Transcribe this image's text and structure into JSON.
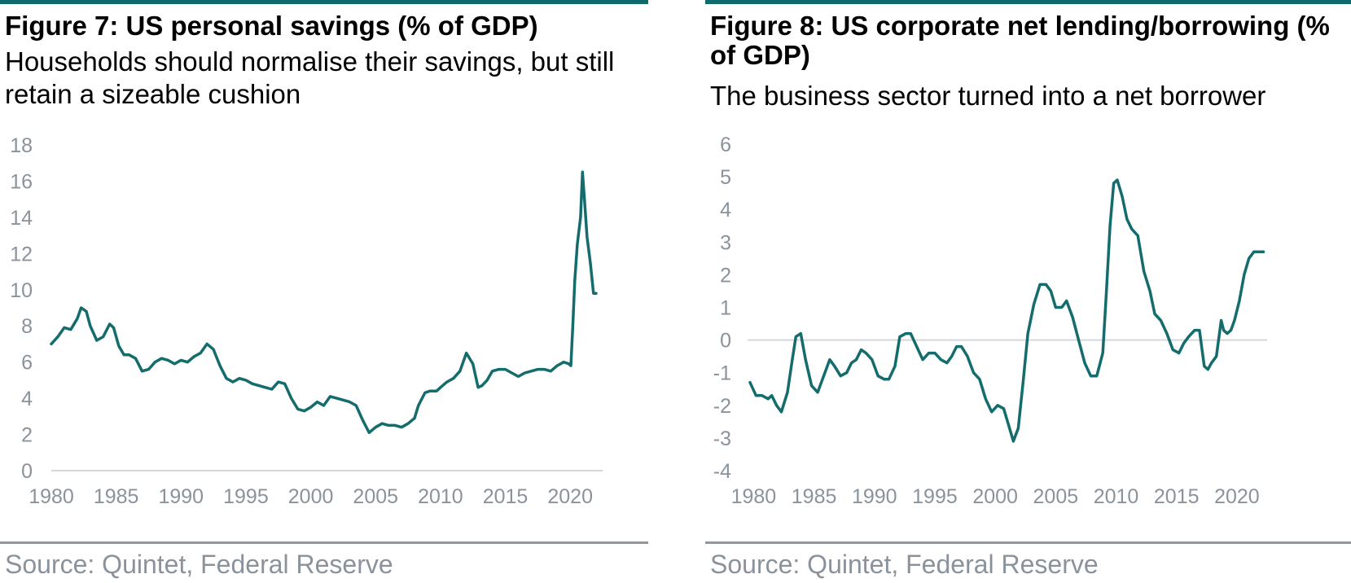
{
  "figures": [
    {
      "title": "Figure 7: US personal savings (% of GDP)",
      "subtitle": "Households should normalise their savings, but still retain a sizeable cushion",
      "source": "Source: Quintet, Federal Reserve"
    },
    {
      "title": "Figure 8: US corporate net lending/borrowing (% of GDP)",
      "subtitle": "The business sector turned into a net borrower",
      "source": "Source: Quintet, Federal Reserve"
    }
  ],
  "colors": {
    "accent": "#0f6b6b",
    "line": "#156c6c",
    "axis": "#d4d7da",
    "tick_text": "#8a939b"
  },
  "chart_data": [
    {
      "type": "line",
      "title": "Figure 7: US personal savings (% of GDP)",
      "xlabel": "",
      "ylabel": "",
      "xlim": [
        1980,
        2022.5
      ],
      "ylim": [
        0,
        18
      ],
      "xticks": [
        "1980",
        "1985",
        "1990",
        "1995",
        "2000",
        "2005",
        "2010",
        "2015",
        "2020"
      ],
      "yticks": [
        "0",
        "2",
        "4",
        "6",
        "8",
        "10",
        "12",
        "14",
        "16",
        "18"
      ],
      "grid": false,
      "series": [
        {
          "x": [
            1980,
            1980.5,
            1981,
            1981.5,
            1982,
            1982.3,
            1982.7,
            1983,
            1983.5,
            1984,
            1984.5,
            1984.8,
            1985.2,
            1985.6,
            1986,
            1986.5,
            1987,
            1987.5,
            1988,
            1988.5,
            1989,
            1989.5,
            1990,
            1990.5,
            1991,
            1991.5,
            1992,
            1992.5,
            1993,
            1993.5,
            1994,
            1994.5,
            1995,
            1995.5,
            1996,
            1996.5,
            1997,
            1997.5,
            1998,
            1998.5,
            1999,
            1999.5,
            2000,
            2000.5,
            2001,
            2001.5,
            2002,
            2002.5,
            2003,
            2003.5,
            2004,
            2004.5,
            2005,
            2005.5,
            2006,
            2006.5,
            2007,
            2007.5,
            2008,
            2008.3,
            2008.8,
            2009.2,
            2009.7,
            2010,
            2010.5,
            2011,
            2011.5,
            2012,
            2012.5,
            2012.9,
            2013.2,
            2013.6,
            2014,
            2014.5,
            2015,
            2015.5,
            2016,
            2016.5,
            2017,
            2017.5,
            2018,
            2018.5,
            2019,
            2019.5,
            2019.9,
            2020.05,
            2020.2,
            2020.35,
            2020.55,
            2020.8,
            2020.95,
            2021.1,
            2021.3,
            2021.55,
            2021.8,
            2022
          ],
          "values": [
            7.0,
            7.4,
            7.9,
            7.8,
            8.4,
            9.0,
            8.8,
            8.0,
            7.2,
            7.4,
            8.1,
            7.9,
            6.9,
            6.4,
            6.4,
            6.2,
            5.5,
            5.6,
            6.0,
            6.2,
            6.1,
            5.9,
            6.1,
            6.0,
            6.3,
            6.5,
            7.0,
            6.7,
            5.8,
            5.1,
            4.9,
            5.1,
            5.0,
            4.8,
            4.7,
            4.6,
            4.5,
            4.9,
            4.8,
            4.0,
            3.4,
            3.3,
            3.5,
            3.8,
            3.6,
            4.1,
            4.0,
            3.9,
            3.8,
            3.6,
            2.8,
            2.1,
            2.4,
            2.6,
            2.5,
            2.5,
            2.4,
            2.6,
            2.9,
            3.6,
            4.3,
            4.4,
            4.4,
            4.6,
            4.9,
            5.1,
            5.5,
            6.5,
            5.9,
            4.6,
            4.7,
            5.0,
            5.5,
            5.6,
            5.6,
            5.4,
            5.2,
            5.4,
            5.5,
            5.6,
            5.6,
            5.5,
            5.8,
            6.0,
            5.9,
            5.8,
            8.0,
            10.5,
            12.5,
            14.0,
            16.5,
            15.0,
            12.9,
            11.5,
            9.8,
            9.8
          ]
        }
      ]
    },
    {
      "type": "line",
      "title": "Figure 8: US corporate net lending/borrowing (% of GDP)",
      "xlabel": "",
      "ylabel": "",
      "xlim": [
        1979.5,
        2022.5
      ],
      "ylim": [
        -4,
        6
      ],
      "xticks": [
        "1980",
        "1985",
        "1990",
        "1995",
        "2000",
        "2005",
        "2010",
        "2015",
        "2020"
      ],
      "yticks": [
        "-4",
        "-3",
        "-2",
        "-1",
        "0",
        "1",
        "2",
        "3",
        "4",
        "5",
        "6"
      ],
      "grid": false,
      "series": [
        {
          "x": [
            1979.7,
            1980.2,
            1980.7,
            1981.2,
            1981.5,
            1981.9,
            1982.3,
            1982.8,
            1983.2,
            1983.5,
            1983.9,
            1984.3,
            1984.8,
            1985.3,
            1985.8,
            1986.3,
            1986.7,
            1987.2,
            1987.7,
            1988.1,
            1988.5,
            1988.9,
            1989.3,
            1989.8,
            1990.3,
            1990.8,
            1991.2,
            1991.7,
            1992.1,
            1992.6,
            1993.0,
            1993.5,
            1994.0,
            1994.5,
            1995.0,
            1995.5,
            1996.0,
            1996.4,
            1996.8,
            1997.2,
            1997.7,
            1998.2,
            1998.7,
            1999.2,
            1999.7,
            2000.2,
            2000.7,
            2001.1,
            2001.5,
            2001.9,
            2002.3,
            2002.7,
            2003.2,
            2003.7,
            2004.2,
            2004.6,
            2005.0,
            2005.5,
            2005.9,
            2006.4,
            2006.9,
            2007.4,
            2007.9,
            2008.4,
            2008.9,
            2009.2,
            2009.5,
            2009.8,
            2010.1,
            2010.5,
            2010.9,
            2011.3,
            2011.8,
            2012.3,
            2012.8,
            2013.2,
            2013.7,
            2014.2,
            2014.7,
            2015.2,
            2015.6,
            2016.0,
            2016.5,
            2016.9,
            2017.3,
            2017.6,
            2017.9,
            2018.3,
            2018.7,
            2018.9,
            2019.2,
            2019.5,
            2019.8,
            2020.2,
            2020.6,
            2021.0,
            2021.4,
            2021.8,
            2022.2
          ],
          "values": [
            -1.3,
            -1.7,
            -1.7,
            -1.8,
            -1.7,
            -2.0,
            -2.2,
            -1.6,
            -0.6,
            0.1,
            0.2,
            -0.6,
            -1.4,
            -1.6,
            -1.1,
            -0.6,
            -0.8,
            -1.1,
            -1.0,
            -0.7,
            -0.6,
            -0.3,
            -0.4,
            -0.6,
            -1.1,
            -1.2,
            -1.2,
            -0.8,
            0.1,
            0.2,
            0.2,
            -0.2,
            -0.6,
            -0.4,
            -0.4,
            -0.6,
            -0.7,
            -0.5,
            -0.2,
            -0.2,
            -0.5,
            -1.0,
            -1.2,
            -1.8,
            -2.2,
            -2.0,
            -2.1,
            -2.6,
            -3.1,
            -2.7,
            -1.3,
            0.2,
            1.1,
            1.7,
            1.7,
            1.5,
            1.0,
            1.0,
            1.2,
            0.7,
            0.0,
            -0.7,
            -1.1,
            -1.1,
            -0.4,
            1.5,
            3.5,
            4.8,
            4.9,
            4.4,
            3.7,
            3.4,
            3.2,
            2.1,
            1.5,
            0.8,
            0.6,
            0.2,
            -0.3,
            -0.4,
            -0.1,
            0.1,
            0.3,
            0.3,
            -0.8,
            -0.9,
            -0.7,
            -0.5,
            0.6,
            0.3,
            0.2,
            0.3,
            0.6,
            1.2,
            2.0,
            2.5,
            2.7,
            2.7,
            2.7
          ]
        }
      ]
    }
  ]
}
